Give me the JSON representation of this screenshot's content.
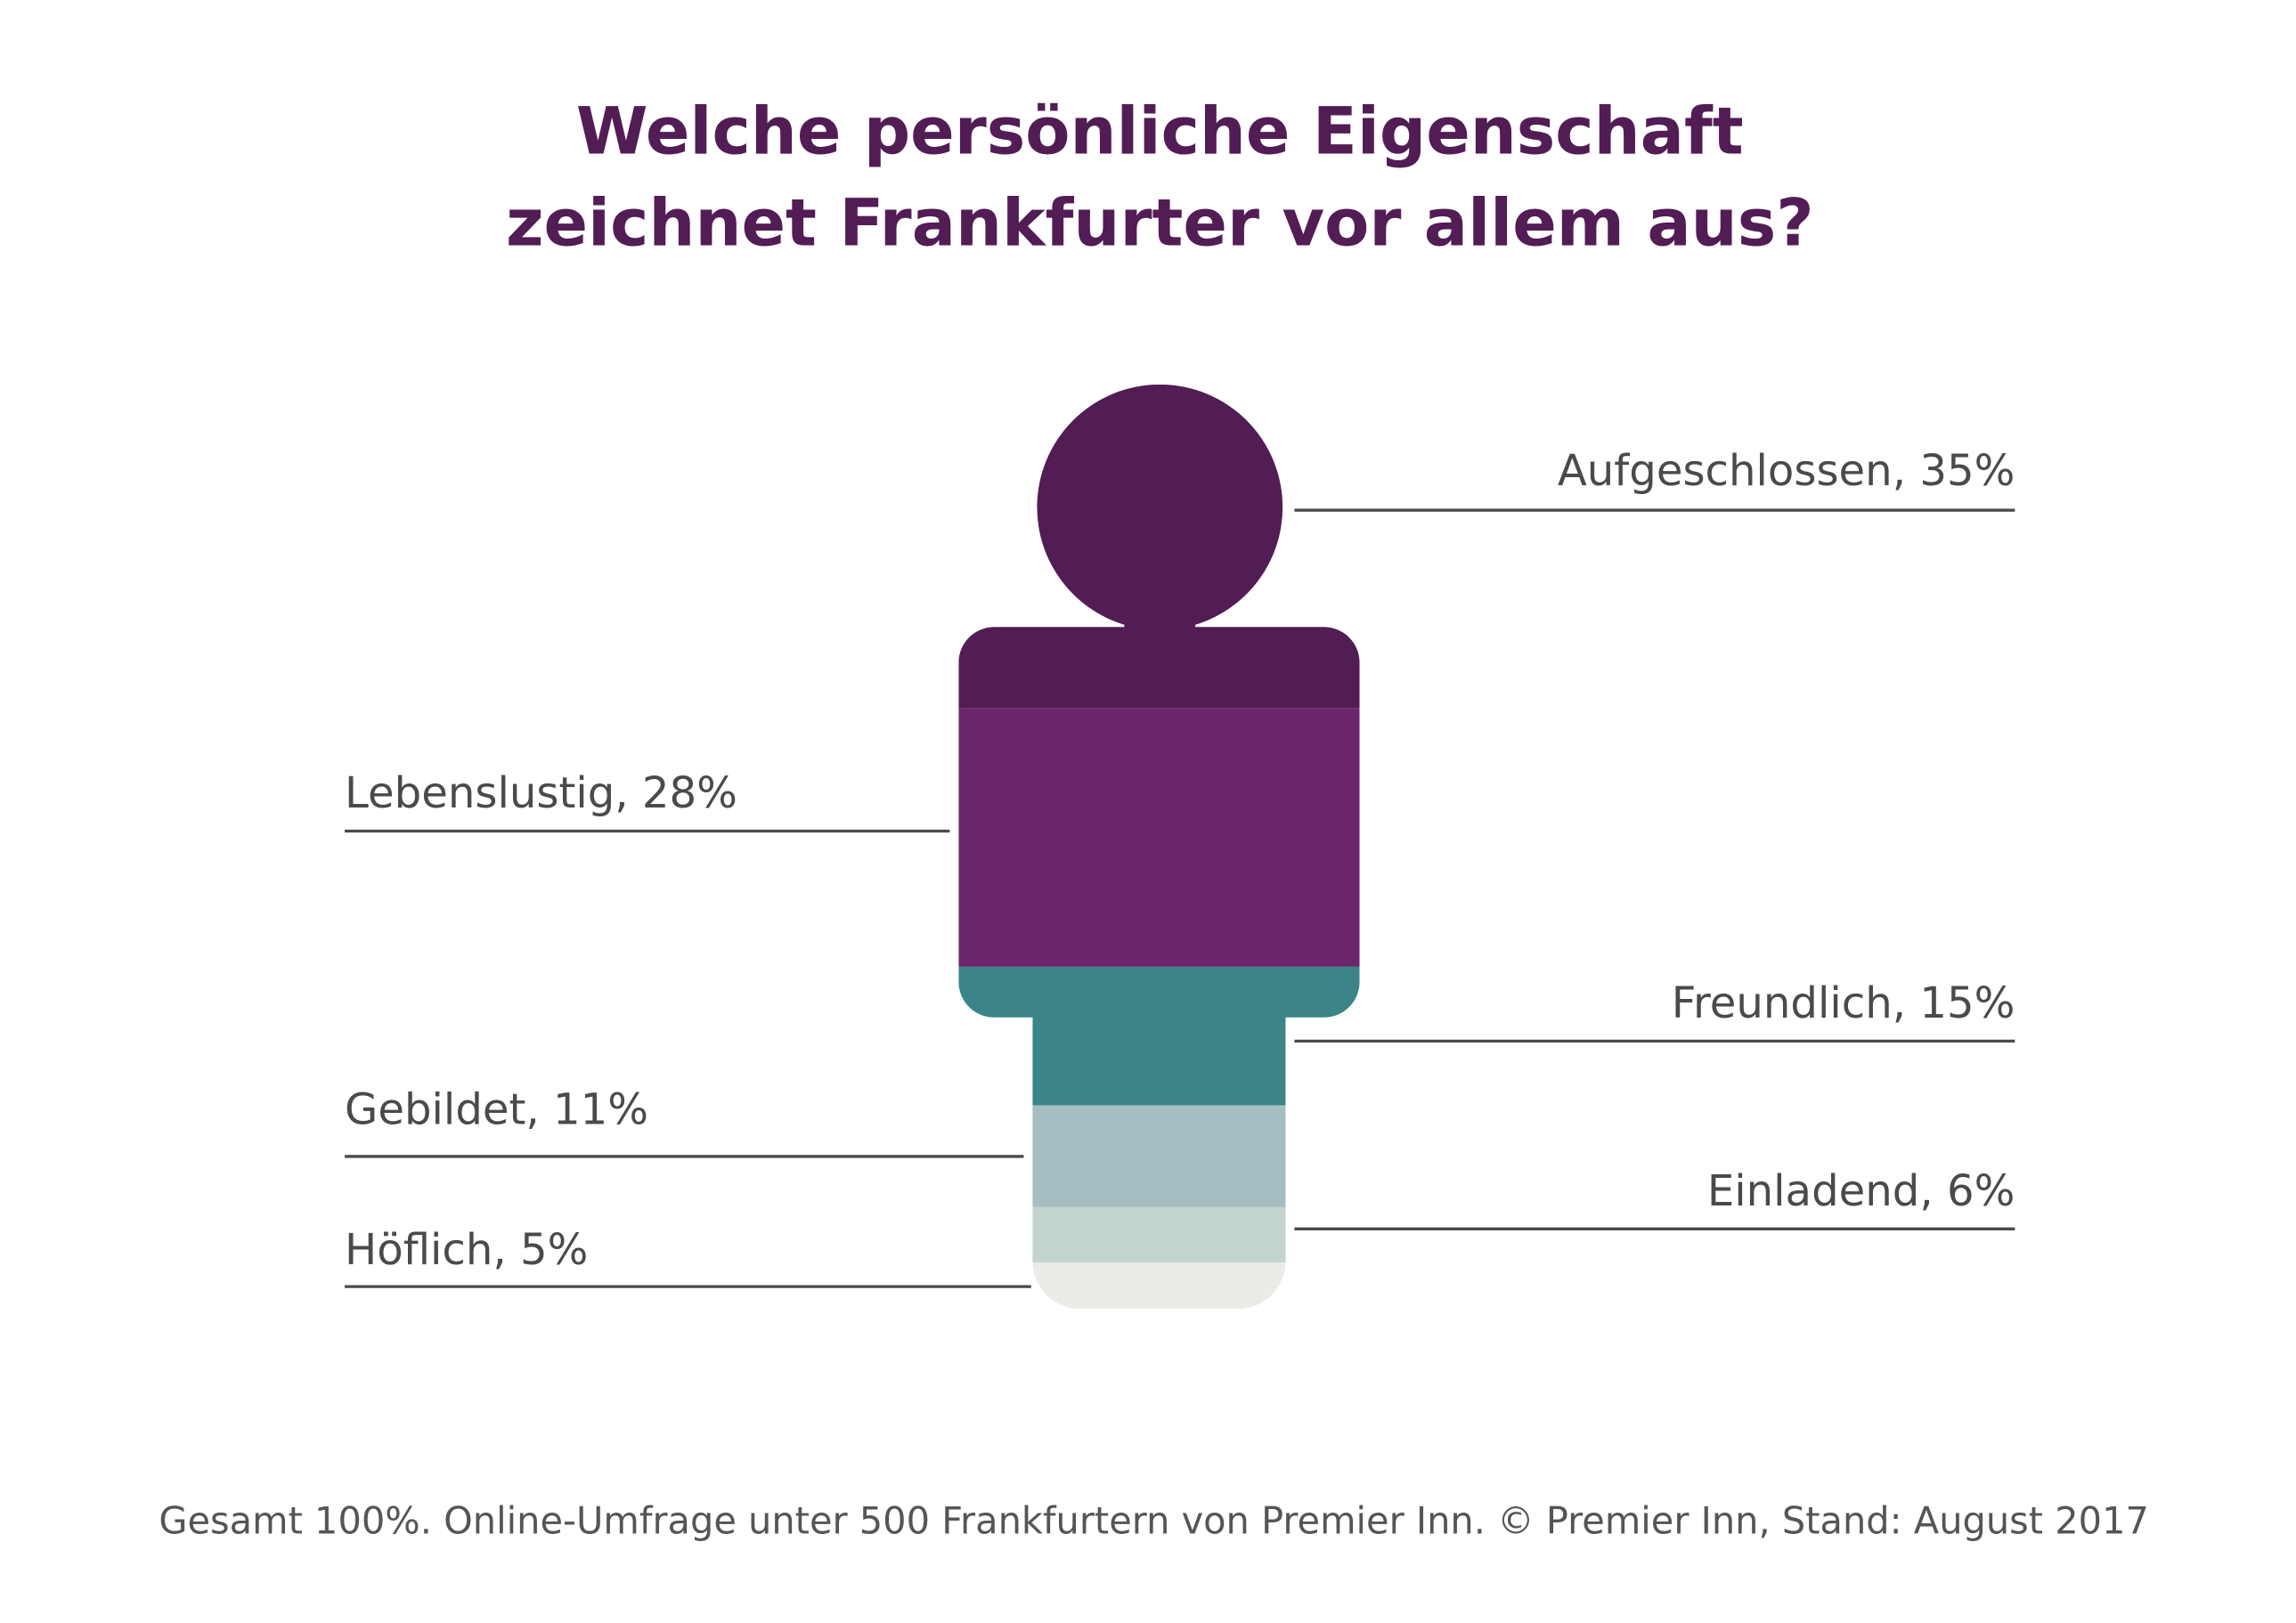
{
  "chart_data": {
    "type": "pictograph",
    "title": [
      "Welche persönliche Eigenschaft",
      "zeichnet Frankfurter vor allem aus?"
    ],
    "values": [
      35,
      28,
      15,
      11,
      6,
      5
    ],
    "value_labels": [
      "Aufgeschlossen, 35%",
      "Lebenslustig, 28%",
      "Freundlich, 15%",
      "Gebildet, 11%",
      "Einladend, 6%",
      "Höflich, 5%"
    ],
    "colors": [
      "#521c55",
      "#6c256b",
      "#3b8488",
      "#a5bec2",
      "#c3d3cf",
      "#ebebe7"
    ],
    "note": "Gesamt 100%. Online-Umfrage unter 500 Frankfurtern von Premier Inn. © Premier Inn, Stand: August 2017"
  }
}
